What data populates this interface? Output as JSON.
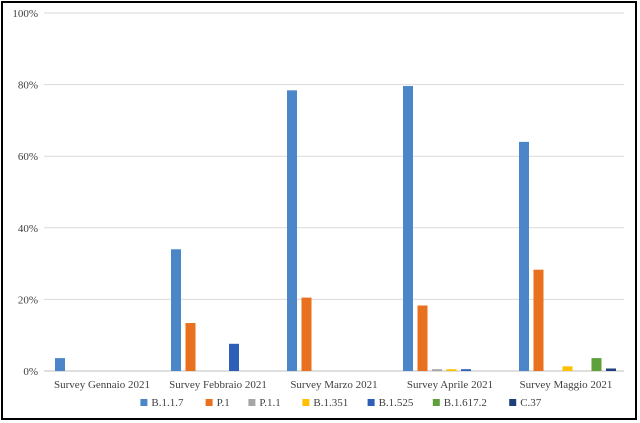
{
  "chart_data": {
    "type": "bar",
    "title": "",
    "xlabel": "",
    "ylabel": "",
    "ylim": [
      0,
      100
    ],
    "yticks": [
      0,
      20,
      40,
      60,
      80,
      100
    ],
    "ytick_suffix": "%",
    "grid": true,
    "legend_position": "bottom",
    "categories": [
      "Survey Gennaio 2021",
      "Survey Febbraio 2021",
      "Survey Marzo 2021",
      "Survey Aprile 2021",
      "Survey Maggio 2021"
    ],
    "series": [
      {
        "name": "B.1.1.7",
        "color": "#4a86c8",
        "values": [
          3.6,
          34.0,
          78.4,
          79.6,
          64.0
        ]
      },
      {
        "name": "P.1",
        "color": "#e8701f",
        "values": [
          0,
          13.4,
          20.5,
          18.3,
          28.3
        ]
      },
      {
        "name": "P.1.1",
        "color": "#a5a5a5",
        "values": [
          0,
          0,
          0,
          0.5,
          0
        ]
      },
      {
        "name": "B.1.351",
        "color": "#ffc000",
        "values": [
          0,
          0,
          0,
          0.5,
          1.3
        ]
      },
      {
        "name": "B.1.525",
        "color": "#2e5fb8",
        "values": [
          0,
          7.6,
          0,
          0.5,
          0
        ]
      },
      {
        "name": "B.1.617.2",
        "color": "#5ea03a",
        "values": [
          0,
          0,
          0,
          0,
          3.6
        ]
      },
      {
        "name": "C.37",
        "color": "#1f3f7a",
        "values": [
          0,
          0,
          0,
          0,
          0.7
        ]
      }
    ]
  }
}
